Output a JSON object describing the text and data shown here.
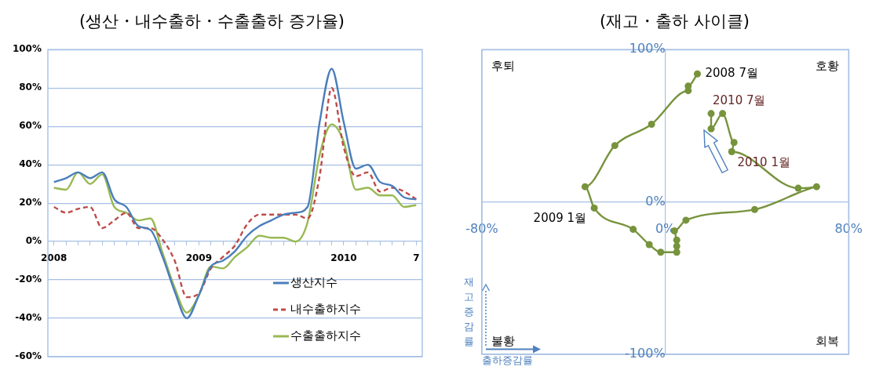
{
  "chart_data": [
    {
      "type": "line",
      "title": "(생산・내수출하・수출출하 증가율)",
      "categories": [
        "2008",
        null,
        null,
        null,
        null,
        null,
        null,
        null,
        null,
        null,
        null,
        null,
        "2009",
        null,
        null,
        null,
        null,
        null,
        null,
        null,
        null,
        null,
        null,
        null,
        "2010",
        null,
        null,
        null,
        null,
        null,
        "7"
      ],
      "series": [
        {
          "name": "생산지수",
          "color": "#4a7ebb",
          "line_style": "solid",
          "values": [
            31,
            33,
            36,
            33,
            36,
            22,
            18,
            8,
            6,
            -8,
            -26,
            -40,
            -28,
            -13,
            -10,
            -5,
            3,
            8,
            11,
            14,
            15,
            18,
            62,
            90,
            62,
            38,
            40,
            31,
            29,
            23,
            22
          ]
        },
        {
          "name": "내수출하지수",
          "color": "#be4b48",
          "line_style": "dashed",
          "values": [
            18,
            15,
            17,
            18,
            7,
            11,
            15,
            7,
            7,
            1,
            -10,
            -29,
            -27,
            -14,
            -8,
            -2,
            9,
            14,
            14,
            14,
            14,
            12,
            34,
            80,
            49,
            34,
            36,
            26,
            28,
            26,
            22
          ]
        },
        {
          "name": "수출출하지수",
          "color": "#98b954",
          "line_style": "solid",
          "values": [
            28,
            27,
            36,
            30,
            35,
            18,
            15,
            11,
            12,
            -6,
            -24,
            -37,
            -28,
            -13,
            -14,
            -8,
            -3,
            3,
            2,
            2,
            0,
            10,
            45,
            61,
            52,
            27,
            28,
            24,
            24,
            18,
            19
          ]
        }
      ],
      "ylim": [
        -60,
        100
      ],
      "yticks": [
        {
          "value": -60,
          "label": "-60%"
        },
        {
          "value": -40,
          "label": "-40%"
        },
        {
          "value": -20,
          "label": "-20%"
        },
        {
          "value": 0,
          "label": "0%"
        },
        {
          "value": 20,
          "label": "20%"
        },
        {
          "value": 40,
          "label": "40%"
        },
        {
          "value": 60,
          "label": "60%"
        },
        {
          "value": 80,
          "label": "80%"
        },
        {
          "value": 100,
          "label": "100%"
        }
      ],
      "grid": "y",
      "legend": "bottom right",
      "marker": "none"
    },
    {
      "type": "line",
      "title": "(재고・출하 사이클)",
      "xlabel": "출하증감률",
      "ylabel": "재고증감률",
      "series": [
        {
          "color": "#77933c",
          "x": [
            14,
            10,
            10,
            -6,
            -22,
            -35,
            -31,
            -14,
            -7,
            -2,
            5,
            5,
            5,
            4,
            9,
            39,
            66,
            58,
            29,
            30,
            25,
            20,
            20
          ],
          "values": [
            84,
            76,
            73,
            51,
            37,
            10,
            -4,
            -18,
            -28,
            -33,
            -33,
            -29,
            -25,
            -19,
            -12,
            -5,
            10,
            9,
            33,
            39,
            58,
            48,
            58
          ]
        }
      ],
      "xlim": [
        -80,
        80
      ],
      "xticks": [
        {
          "value": -80,
          "label": "-80%"
        },
        {
          "value": 0,
          "label": "0%"
        },
        {
          "value": 80,
          "label": "80%"
        }
      ],
      "ylim": [
        -100,
        100
      ],
      "yticks": [
        {
          "value": -100,
          "label": "-100%"
        },
        {
          "value": 0,
          "label": "0%"
        },
        {
          "value": 100,
          "label": "100%"
        }
      ],
      "grid": true,
      "marker": "circle",
      "line_style": "solid",
      "annotations": [
        "후퇴",
        "호황",
        "불황",
        "회복",
        {
          "text": "2008 7월",
          "x": 14,
          "y": 84
        },
        {
          "text": "2009 1월",
          "x": -31,
          "y": -4
        },
        {
          "text": "2010 1월",
          "x": 58,
          "y": 9
        },
        {
          "text": "2010 7월",
          "x": 20,
          "y": 58
        }
      ]
    }
  ]
}
